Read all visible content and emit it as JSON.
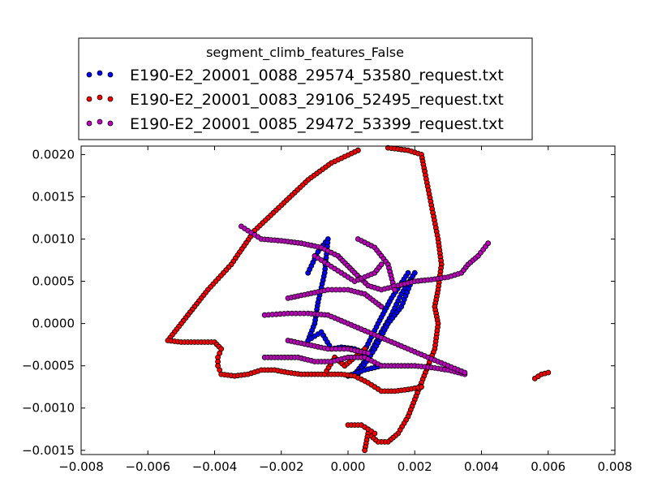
{
  "chart_data": {
    "type": "scatter",
    "title": "",
    "xlabel": "",
    "ylabel": "",
    "xlim": [
      -0.008,
      0.008
    ],
    "ylim": [
      -0.00155,
      0.0021
    ],
    "x_ticks": [
      -0.008,
      -0.006,
      -0.004,
      -0.002,
      0.0,
      0.002,
      0.004,
      0.006,
      0.008
    ],
    "x_tick_labels": [
      "−0.008",
      "−0.006",
      "−0.004",
      "−0.002",
      "0.000",
      "0.002",
      "0.004",
      "0.006",
      "0.008"
    ],
    "y_ticks": [
      -0.0015,
      -0.001,
      -0.0005,
      0.0,
      0.0005,
      0.001,
      0.0015,
      0.002
    ],
    "y_tick_labels": [
      "−0.0015",
      "−0.0010",
      "−0.0005",
      "0.0000",
      "0.0005",
      "0.0010",
      "0.0015",
      "0.0020"
    ],
    "grid": false,
    "legend": {
      "title": "segment_climb_features_False",
      "placement": "top-left, above plot"
    },
    "series": [
      {
        "name": "E190-E2_20001_0088_29574_53580_request.txt",
        "color": "#0000ff",
        "paths": [
          [
            [
              -0.0012,
              0.0006
            ],
            [
              -0.0009,
              0.00085
            ],
            [
              -0.0006,
              0.001
            ],
            [
              -0.0007,
              0.0006
            ],
            [
              -0.0009,
              0.00025
            ],
            [
              -0.001,
              0.0
            ],
            [
              -0.0012,
              -0.0002
            ],
            [
              -0.0008,
              -0.0001
            ],
            [
              -0.0005,
              -0.0003
            ],
            [
              -0.0002,
              -0.00028
            ],
            [
              0.0002,
              -0.0003
            ],
            [
              0.0005,
              -0.00035
            ]
          ],
          [
            [
              0.0002,
              -0.0006
            ],
            [
              0.0006,
              -0.0004
            ],
            [
              0.001,
              -0.0001
            ],
            [
              0.0013,
              0.0001
            ],
            [
              0.0016,
              0.00035
            ],
            [
              0.002,
              0.0006
            ]
          ],
          [
            [
              0.0003,
              -0.0006
            ],
            [
              0.0008,
              -0.0003
            ],
            [
              0.0012,
              0.0
            ],
            [
              0.0016,
              0.0002
            ],
            [
              0.0019,
              0.0005
            ]
          ],
          [
            [
              0.0004,
              -0.0004
            ],
            [
              0.0009,
              0.0
            ],
            [
              0.0013,
              0.0003
            ],
            [
              0.0018,
              0.0006
            ]
          ],
          [
            [
              0.0,
              -0.00062
            ],
            [
              0.0005,
              -0.00055
            ],
            [
              0.001,
              -0.0005
            ]
          ]
        ]
      },
      {
        "name": "E190-E2_20001_0083_29106_52495_request.txt",
        "color": "#ff0000",
        "paths": [
          [
            [
              0.0003,
              0.00205
            ],
            [
              0.0004,
              0.0021
            ],
            [
              0.0012,
              0.00208
            ],
            [
              0.0018,
              0.00205
            ],
            [
              0.0022,
              0.002
            ],
            [
              0.0023,
              0.0018
            ],
            [
              0.0025,
              0.0014
            ],
            [
              0.0027,
              0.001
            ],
            [
              0.0028,
              0.0007
            ],
            [
              0.0027,
              0.0004
            ],
            [
              0.0026,
              0.0002
            ],
            [
              0.0027,
              0.0
            ],
            [
              0.0026,
              -0.0003
            ],
            [
              0.0024,
              -0.0005
            ],
            [
              0.0022,
              -0.0007
            ],
            [
              0.002,
              -0.0009
            ],
            [
              0.0018,
              -0.0011
            ],
            [
              0.0015,
              -0.0013
            ],
            [
              0.0012,
              -0.0014
            ],
            [
              0.0009,
              -0.0014
            ],
            [
              0.0006,
              -0.0013
            ],
            [
              0.0005,
              -0.0015
            ]
          ],
          [
            [
              0.0003,
              0.00205
            ],
            [
              -0.0005,
              0.0019
            ],
            [
              -0.0012,
              0.0017
            ],
            [
              -0.002,
              0.0014
            ],
            [
              -0.0028,
              0.0011
            ],
            [
              -0.0035,
              0.0007
            ],
            [
              -0.0042,
              0.0004
            ],
            [
              -0.0048,
              0.0001
            ],
            [
              -0.0052,
              -0.0001
            ],
            [
              -0.0054,
              -0.0002
            ],
            [
              -0.005,
              -0.00022
            ],
            [
              -0.0045,
              -0.00022
            ],
            [
              -0.004,
              -0.00022
            ],
            [
              -0.0038,
              -0.0003
            ],
            [
              -0.0039,
              -0.0004
            ],
            [
              -0.0039,
              -0.0005
            ],
            [
              -0.0038,
              -0.0006
            ],
            [
              -0.0034,
              -0.00062
            ],
            [
              -0.003,
              -0.0006
            ],
            [
              -0.0026,
              -0.00055
            ],
            [
              -0.0022,
              -0.00055
            ],
            [
              -0.0018,
              -0.00058
            ],
            [
              -0.0014,
              -0.0006
            ],
            [
              -0.001,
              -0.0006
            ],
            [
              -0.0006,
              -0.0006
            ],
            [
              -0.0002,
              -0.0006
            ],
            [
              0.0002,
              -0.00062
            ],
            [
              0.0006,
              -0.0007
            ],
            [
              0.001,
              -0.0008
            ],
            [
              0.0014,
              -0.0008
            ],
            [
              0.0018,
              -0.00078
            ],
            [
              0.0022,
              -0.00075
            ]
          ],
          [
            [
              -0.0007,
              -0.0006
            ],
            [
              -0.0004,
              -0.0004
            ],
            [
              -0.0001,
              -0.0005
            ],
            [
              0.0002,
              -0.0004
            ],
            [
              0.0005,
              -0.0003
            ]
          ],
          [
            [
              0.0,
              -0.0012
            ],
            [
              0.0004,
              -0.0012
            ],
            [
              0.0008,
              -0.0013
            ]
          ],
          [
            [
              0.0056,
              -0.00065
            ],
            [
              0.0058,
              -0.0006
            ],
            [
              0.006,
              -0.00058
            ]
          ]
        ]
      },
      {
        "name": "E190-E2_20001_0085_29472_53399_request.txt",
        "color": "#bf00bf",
        "paths": [
          [
            [
              -0.0032,
              0.00115
            ],
            [
              -0.0026,
              0.001
            ],
            [
              -0.002,
              0.00098
            ],
            [
              -0.0014,
              0.00095
            ],
            [
              -0.0008,
              0.0009
            ],
            [
              -0.0003,
              0.0008
            ],
            [
              0.0002,
              0.0006
            ],
            [
              0.0006,
              0.00045
            ],
            [
              0.001,
              0.0004
            ],
            [
              0.0015,
              0.00045
            ],
            [
              0.002,
              0.0005
            ],
            [
              0.0025,
              0.00052
            ],
            [
              0.003,
              0.00055
            ],
            [
              0.0034,
              0.0006
            ],
            [
              0.0036,
              0.0007
            ],
            [
              0.0039,
              0.0008
            ],
            [
              0.0042,
              0.00095
            ]
          ],
          [
            [
              -0.0025,
              -0.0004
            ],
            [
              -0.002,
              -0.0004
            ],
            [
              -0.0015,
              -0.0004
            ],
            [
              -0.001,
              -0.00045
            ],
            [
              -0.0005,
              -0.00045
            ],
            [
              0.0,
              -0.0004
            ],
            [
              0.0005,
              -0.0004
            ],
            [
              0.001,
              -0.0005
            ],
            [
              0.0015,
              -0.0005
            ],
            [
              0.002,
              -0.0005
            ],
            [
              0.0025,
              -0.00052
            ],
            [
              0.003,
              -0.00055
            ],
            [
              0.0035,
              -0.0006
            ]
          ],
          [
            [
              -0.0025,
              0.0001
            ],
            [
              -0.0018,
              0.00012
            ],
            [
              -0.0012,
              0.00012
            ],
            [
              -0.0006,
              0.0001
            ],
            [
              0.0,
              0.0
            ],
            [
              0.0006,
              -0.0001
            ],
            [
              0.0012,
              -0.0002
            ],
            [
              0.0018,
              -0.0003
            ],
            [
              0.0024,
              -0.0004
            ],
            [
              0.003,
              -0.0005
            ],
            [
              0.0035,
              -0.00058
            ]
          ],
          [
            [
              -0.0018,
              0.0003
            ],
            [
              -0.0012,
              0.00035
            ],
            [
              -0.0006,
              0.0004
            ],
            [
              0.0,
              0.0004
            ],
            [
              0.0005,
              0.00035
            ],
            [
              0.001,
              0.0002
            ]
          ],
          [
            [
              -0.0018,
              -0.0002
            ],
            [
              -0.0012,
              -0.00025
            ],
            [
              -0.0006,
              -0.0003
            ],
            [
              0.0,
              -0.0003
            ],
            [
              0.0006,
              -0.00035
            ]
          ],
          [
            [
              -0.001,
              0.0008
            ],
            [
              -0.0004,
              0.00065
            ],
            [
              0.0002,
              0.0005
            ],
            [
              0.0008,
              0.0006
            ],
            [
              0.001,
              0.0007
            ]
          ],
          [
            [
              0.0003,
              0.001
            ],
            [
              0.0008,
              0.0009
            ],
            [
              0.0012,
              0.0007
            ],
            [
              0.0014,
              0.0004
            ]
          ]
        ]
      }
    ]
  }
}
